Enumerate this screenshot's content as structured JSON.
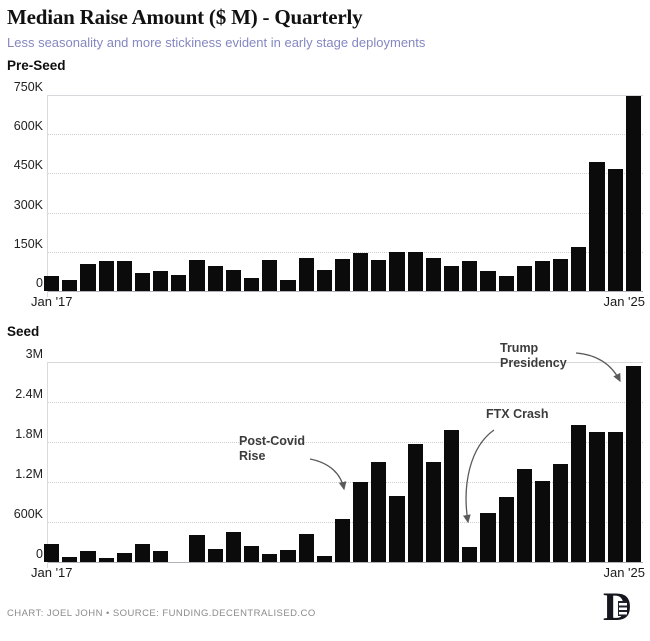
{
  "header": {
    "title": "Median Raise Amount ($ M) - Quarterly",
    "subtitle": "Less seasonality and more stickiness evident in early stage deployments"
  },
  "footer": {
    "credit": "CHART: JOEL JOHN • SOURCE: FUNDING.DECENTRALISED.CO",
    "logo_glyph": "D"
  },
  "colors": {
    "bar": "#0b0b0b",
    "subtitle": "#8487c0",
    "annotation_text": "#3c3c3c",
    "annotation_arrow": "#5a5a5a",
    "gridline": "#cdcdd4",
    "baseline": "#b1b1b8",
    "footer_text": "#8b8b8b"
  },
  "chart_data": [
    {
      "type": "bar",
      "title": "Pre-Seed",
      "categories": [
        "Q1 '17",
        "Q2 '17",
        "Q3 '17",
        "Q4 '17",
        "Q1 '18",
        "Q2 '18",
        "Q3 '18",
        "Q4 '18",
        "Q1 '19",
        "Q2 '19",
        "Q3 '19",
        "Q4 '19",
        "Q1 '20",
        "Q2 '20",
        "Q3 '20",
        "Q4 '20",
        "Q1 '21",
        "Q2 '21",
        "Q3 '21",
        "Q4 '21",
        "Q1 '22",
        "Q2 '22",
        "Q3 '22",
        "Q4 '22",
        "Q1 '23",
        "Q2 '23",
        "Q3 '23",
        "Q4 '23",
        "Q1 '24",
        "Q2 '24",
        "Q3 '24",
        "Q4 '24",
        "Q1 '25"
      ],
      "values": [
        58000,
        43000,
        103000,
        114000,
        116000,
        68000,
        78000,
        61000,
        117000,
        96000,
        79000,
        51000,
        117000,
        41000,
        125000,
        80000,
        121000,
        144000,
        117000,
        149000,
        149000,
        128000,
        96000,
        115000,
        77000,
        59000,
        95000,
        114000,
        122000,
        167000,
        493000,
        468000,
        745000
      ],
      "ylim": [
        0,
        750000
      ],
      "ytick_values": [
        0,
        150000,
        300000,
        450000,
        600000,
        750000
      ],
      "ytick_labels": [
        "0",
        "150K",
        "300K",
        "450K",
        "600K",
        "750K"
      ],
      "xtick_labels": [
        "Jan '17",
        "Jan '25"
      ],
      "grid": "horizontal-dotted",
      "bar_color": "#0b0b0b"
    },
    {
      "type": "bar",
      "title": "Seed",
      "categories": [
        "Q1 '17",
        "Q2 '17",
        "Q3 '17",
        "Q4 '17",
        "Q1 '18",
        "Q2 '18",
        "Q3 '18",
        "Q4 '18",
        "Q1 '19",
        "Q2 '19",
        "Q3 '19",
        "Q4 '19",
        "Q1 '20",
        "Q2 '20",
        "Q3 '20",
        "Q4 '20",
        "Q1 '21",
        "Q2 '21",
        "Q3 '21",
        "Q4 '21",
        "Q1 '22",
        "Q2 '22",
        "Q3 '22",
        "Q4 '22",
        "Q1 '23",
        "Q2 '23",
        "Q3 '23",
        "Q4 '23",
        "Q1 '24",
        "Q2 '24",
        "Q3 '24",
        "Q4 '24",
        "Q1 '25"
      ],
      "values": [
        270000,
        75000,
        170000,
        55000,
        135000,
        270000,
        170000,
        0,
        400000,
        200000,
        450000,
        235000,
        115000,
        180000,
        425000,
        90000,
        640000,
        1200000,
        1500000,
        995000,
        1770000,
        1500000,
        1980000,
        220000,
        730000,
        970000,
        1400000,
        1220000,
        1470000,
        2060000,
        1950000,
        1950000,
        2940000
      ],
      "ylim": [
        0,
        3000000
      ],
      "ytick_values": [
        0,
        600000,
        1200000,
        1800000,
        2400000,
        3000000
      ],
      "ytick_labels": [
        "0",
        "600K",
        "1.2M",
        "1.8M",
        "2.4M",
        "3M"
      ],
      "xtick_labels": [
        "Jan '17",
        "Jan '25"
      ],
      "grid": "horizontal-dotted",
      "bar_color": "#0b0b0b",
      "annotations": [
        {
          "text": "Post-Covid Rise",
          "target": "Q1 '21"
        },
        {
          "text": "FTX Crash",
          "target": "Q4 '22"
        },
        {
          "text": "Trump Presidency",
          "target": "Q1 '25"
        }
      ]
    }
  ]
}
